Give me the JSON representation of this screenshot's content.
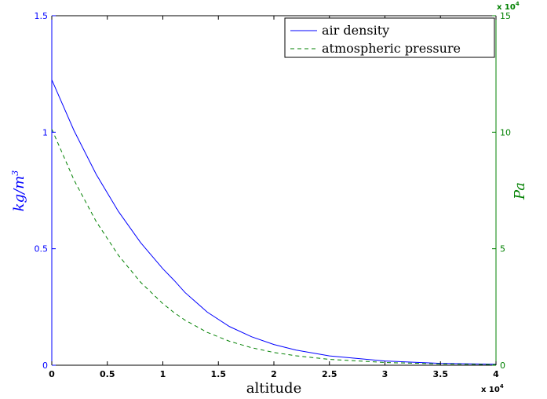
{
  "chart_data": {
    "type": "line",
    "xlabel": "altitude",
    "x_exponent_label": "x 10",
    "x_exponent_power": "4",
    "ylabel_left": "kg/m",
    "ylabel_left_power": "3",
    "ylabel_right": "Pa",
    "y_right_exponent_label": "x 10",
    "y_right_exponent_power": "4",
    "xlim": [
      0,
      40000
    ],
    "ylim_left": [
      0,
      1.5
    ],
    "ylim_right": [
      0,
      150000
    ],
    "x_ticks": [
      0,
      5000,
      10000,
      15000,
      20000,
      25000,
      30000,
      35000,
      40000
    ],
    "x_tick_labels": [
      "0",
      "0.5",
      "1",
      "1.5",
      "2",
      "2.5",
      "3",
      "3.5",
      "4"
    ],
    "y_left_ticks": [
      0,
      0.5,
      1,
      1.5
    ],
    "y_left_tick_labels": [
      "0",
      "0.5",
      "1",
      "1.5"
    ],
    "y_right_ticks": [
      0,
      50000,
      100000,
      150000
    ],
    "y_right_tick_labels": [
      "0",
      "5",
      "10",
      "15"
    ],
    "grid": false,
    "legend_position": "top-right",
    "colors": {
      "left_axis": "#0000ff",
      "right_axis": "#008000",
      "density_line": "#0000ff",
      "pressure_line": "#008000"
    },
    "series": [
      {
        "name": "air density",
        "axis": "left",
        "style": "solid",
        "x": [
          0,
          2000,
          4000,
          6000,
          8000,
          10000,
          11000,
          12000,
          14000,
          16000,
          18000,
          20000,
          22000,
          25000,
          30000,
          35000,
          40000
        ],
        "values": [
          1.225,
          1.007,
          0.819,
          0.66,
          0.526,
          0.414,
          0.365,
          0.312,
          0.228,
          0.166,
          0.122,
          0.089,
          0.065,
          0.04,
          0.018,
          0.008,
          0.004
        ]
      },
      {
        "name": "atmospheric pressure",
        "axis": "right",
        "style": "dashed",
        "x": [
          0,
          2000,
          4000,
          6000,
          8000,
          10000,
          11000,
          12000,
          14000,
          16000,
          18000,
          20000,
          22000,
          25000,
          30000,
          35000,
          40000
        ],
        "values": [
          101325,
          79495,
          61640,
          47181,
          35600,
          26436,
          22632,
          19330,
          14102,
          10287,
          7505,
          5475,
          4047,
          2511,
          1172,
          559,
          277
        ]
      }
    ]
  }
}
